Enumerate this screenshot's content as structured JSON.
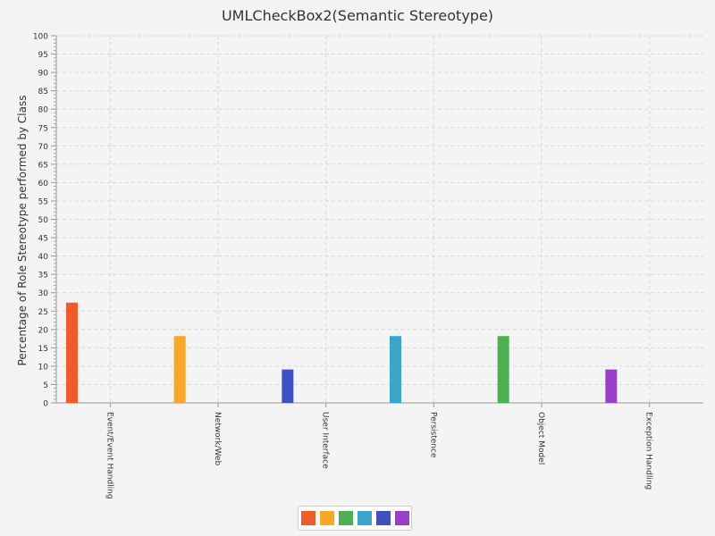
{
  "chart_data": {
    "type": "bar",
    "title": "UMLCheckBox2(Semantic Stereotype)",
    "xlabel": "",
    "ylabel": "Percentage of Role Stereotype performed by Class",
    "ylim": [
      0,
      100
    ],
    "y_ticks": [
      "0",
      "5",
      "10",
      "15",
      "20",
      "25",
      "30",
      "35",
      "40",
      "45",
      "50",
      "55",
      "60",
      "65",
      "70",
      "75",
      "80",
      "85",
      "90",
      "95",
      "100"
    ],
    "grid": true,
    "legend_position": "bottom",
    "categories": [
      "Event/Event Handling",
      "Network/Web",
      "User Interface",
      "Persistence",
      "Object Model",
      "Exception Handling"
    ],
    "values": [
      27.3,
      18.2,
      9.1,
      18.2,
      18.2,
      9.1
    ],
    "colors": [
      "#f15a2b",
      "#f9a825",
      "#3f51c4",
      "#3aa6c9",
      "#4caf50",
      "#9c3fc8"
    ],
    "legend_colors": [
      "#f15a2b",
      "#f9a825",
      "#4caf50",
      "#3aa6c9",
      "#3f51c4",
      "#9c3fc8"
    ]
  }
}
